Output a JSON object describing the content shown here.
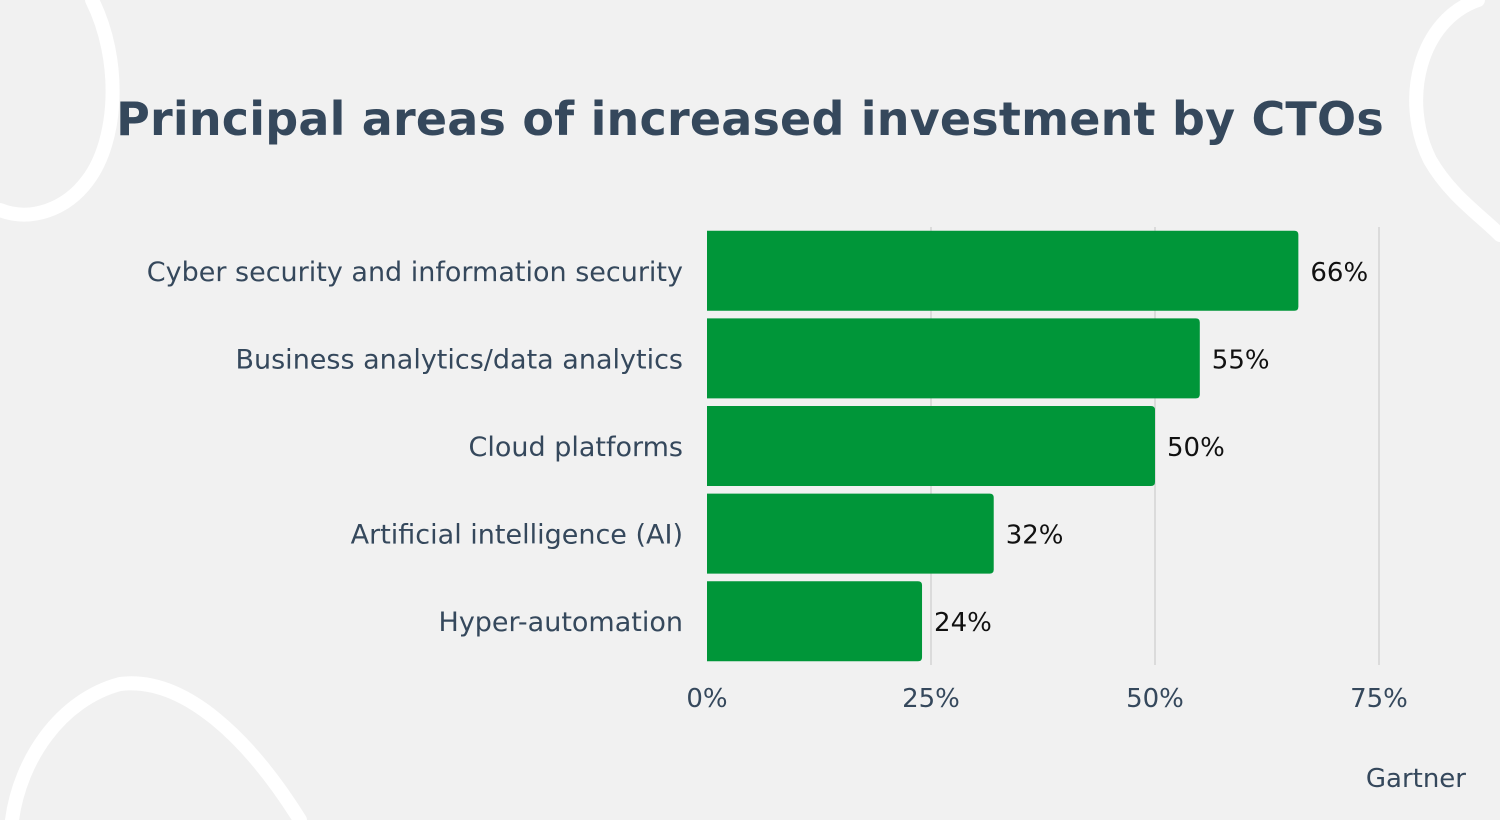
{
  "source": "Gartner",
  "colors": {
    "background": "#f1f1f1",
    "bar": "#009639",
    "title": "#35485c",
    "label": "#35485c",
    "value": "#111111",
    "grid": "#d4d4d4",
    "decoration": "#ffffff"
  },
  "chart_data": {
    "type": "bar",
    "orientation": "horizontal",
    "title": "Principal areas of increased investment by CTOs",
    "categories": [
      "Cyber security and information security",
      "Business analytics/data analytics",
      "Cloud platforms",
      "Artificial intelligence (AI)",
      "Hyper-automation"
    ],
    "values": [
      66,
      55,
      50,
      32,
      24
    ],
    "value_labels": [
      "66%",
      "55%",
      "50%",
      "32%",
      "24%"
    ],
    "xlim": [
      0,
      75
    ],
    "xticks": [
      0,
      25,
      50,
      75
    ],
    "xtick_labels": [
      "0%",
      "25%",
      "50%",
      "75%"
    ],
    "xlabel": "",
    "ylabel": "",
    "grid": true,
    "legend": "none"
  }
}
